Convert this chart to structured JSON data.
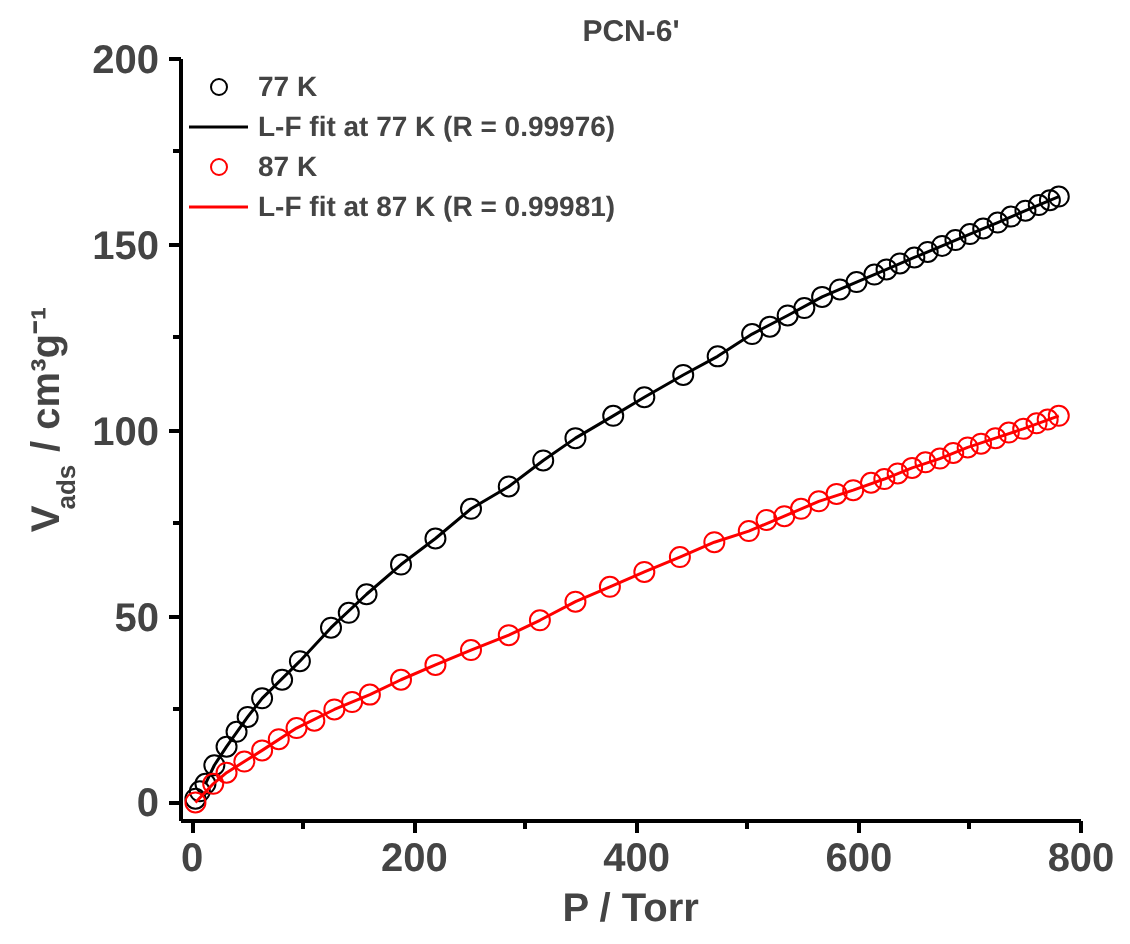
{
  "chart_data": {
    "type": "scatter",
    "title": "PCN-6'",
    "xlabel": "P / Torr",
    "ylabel": "V$_{ads}$ / cm³g⁻¹",
    "xlim": [
      -10,
      800
    ],
    "xticks": [
      0,
      200,
      400,
      600,
      800
    ],
    "ylim": [
      -5,
      200
    ],
    "yticks": [
      0,
      50,
      100,
      150,
      200
    ],
    "grid": false,
    "legend": "top left",
    "marker": "circle",
    "series": [
      {
        "name": "77 K",
        "color": "#000000",
        "x": [
          3,
          7,
          12,
          20,
          31,
          40,
          50,
          63,
          81,
          97,
          125,
          141,
          157,
          188,
          219,
          251,
          285,
          316,
          345,
          379,
          407,
          442,
          473,
          504,
          520,
          536,
          551,
          567,
          583,
          598,
          614,
          625,
          637,
          650,
          662,
          675,
          687,
          700,
          712,
          725,
          737,
          750,
          762,
          772,
          780
        ],
        "values": [
          1,
          3,
          5,
          10,
          15,
          19,
          23,
          28,
          33,
          38,
          47,
          51,
          56,
          64,
          71,
          79,
          85,
          92,
          98,
          104,
          109,
          115,
          120,
          126,
          128,
          131,
          133,
          136,
          138,
          140,
          142,
          143.4,
          145,
          146.6,
          148.1,
          149.7,
          151.3,
          152.9,
          154.4,
          156,
          157.6,
          159.2,
          160.7,
          162,
          163
        ]
      },
      {
        "name": "L-F fit at 77 K (R = 0.99976)",
        "type": "line",
        "color": "#000000",
        "marker": "none",
        "x": [
          12,
          20,
          31,
          50,
          63,
          97,
          125,
          157,
          188,
          219,
          251,
          285,
          316,
          345,
          379,
          407,
          442,
          473,
          504,
          536,
          567,
          598,
          625,
          650,
          675,
          700,
          725,
          750,
          780
        ],
        "values": [
          5,
          10,
          15,
          23,
          28,
          38,
          47,
          56,
          64,
          71,
          79,
          85,
          92,
          98,
          104,
          109,
          115,
          120,
          126,
          131,
          136,
          140,
          143.4,
          146.6,
          149.7,
          152.9,
          156,
          159.2,
          163
        ]
      },
      {
        "name": "87 K",
        "color": "#ff0000",
        "x": [
          3,
          19,
          31,
          47,
          63,
          78,
          94,
          110,
          128,
          144,
          160,
          188,
          219,
          251,
          285,
          313,
          345,
          376,
          407,
          439,
          470,
          501,
          517,
          533,
          548,
          564,
          580,
          595,
          611,
          623,
          635,
          648,
          660,
          673,
          685,
          698,
          710,
          723,
          735,
          748,
          760,
          770,
          780
        ],
        "values": [
          0,
          5,
          8,
          11,
          14,
          17,
          20,
          22,
          25,
          27,
          29,
          33,
          37,
          41,
          45,
          49,
          54,
          58,
          62,
          66,
          70,
          73,
          76,
          77,
          79,
          81,
          83,
          84,
          86,
          87,
          88.5,
          90,
          91.5,
          92.5,
          94,
          95.5,
          96.5,
          98,
          99.5,
          100.5,
          102,
          103,
          104
        ]
      },
      {
        "name": "L-F fit at 87 K (R = 0.99981)",
        "type": "line",
        "color": "#ff0000",
        "marker": "none",
        "x": [
          3,
          19,
          31,
          47,
          63,
          94,
          128,
          160,
          188,
          219,
          251,
          285,
          313,
          345,
          376,
          407,
          439,
          470,
          501,
          533,
          564,
          595,
          623,
          648,
          673,
          698,
          723,
          748,
          780
        ],
        "values": [
          0,
          5,
          8,
          11,
          14,
          20,
          25,
          29,
          33,
          37,
          41,
          45,
          49,
          54,
          58,
          62,
          66,
          70,
          73,
          77,
          81,
          84,
          87,
          90,
          92.5,
          95.5,
          98,
          100.5,
          104
        ]
      }
    ]
  }
}
